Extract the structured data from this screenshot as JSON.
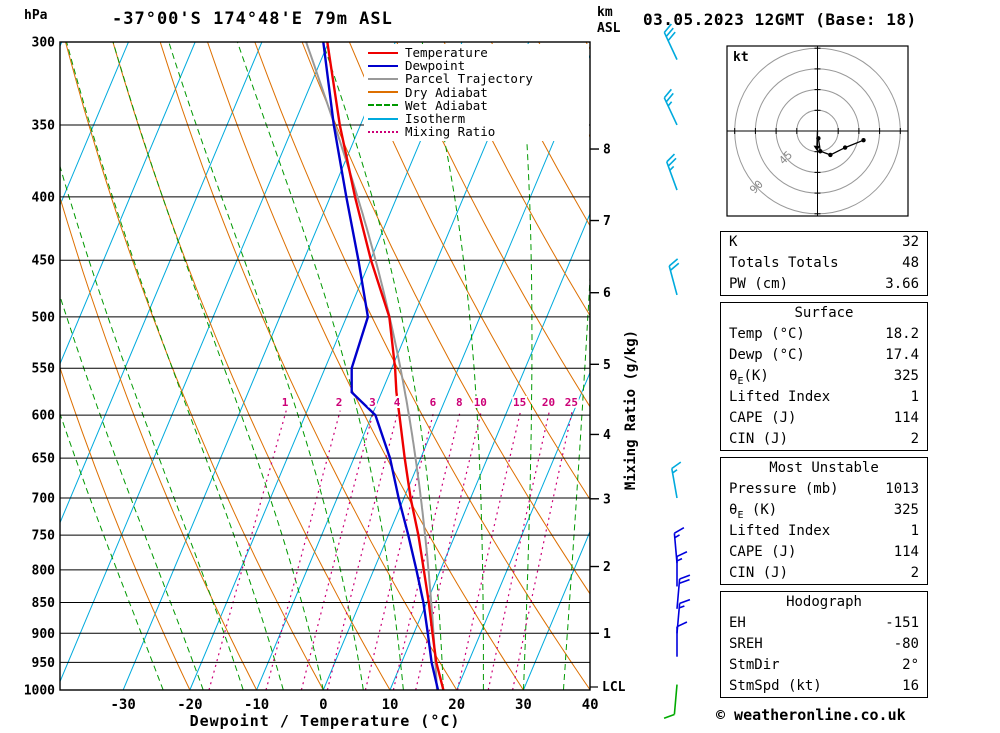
{
  "header": {
    "pressure_unit": "hPa",
    "station_title": "-37°00'S 174°48'E 79m ASL",
    "km_label": "km",
    "asl_label": "ASL",
    "datetime_title": "03.05.2023 12GMT (Base: 18)"
  },
  "legend": {
    "items": [
      {
        "label": "Temperature",
        "color": "#ee0000",
        "style": "solid"
      },
      {
        "label": "Dewpoint",
        "color": "#0000cc",
        "style": "solid"
      },
      {
        "label": "Parcel Trajectory",
        "color": "#999999",
        "style": "solid"
      },
      {
        "label": "Dry Adiabat",
        "color": "#dd6f00",
        "style": "solid"
      },
      {
        "label": "Wet Adiabat",
        "color": "#009900",
        "style": "dashed"
      },
      {
        "label": "Isotherm",
        "color": "#00aadd",
        "style": "solid"
      },
      {
        "label": "Mixing Ratio",
        "color": "#cc0077",
        "style": "dotted"
      }
    ]
  },
  "axes": {
    "pressure_ticks": [
      300,
      350,
      400,
      450,
      500,
      550,
      600,
      650,
      700,
      750,
      800,
      850,
      900,
      950,
      1000
    ],
    "temp_ticks": [
      -30,
      -20,
      -10,
      0,
      10,
      20,
      30,
      40
    ],
    "xlabel": "Dewpoint / Temperature (°C)",
    "right_axis_label": "Mixing Ratio (g/kg)",
    "km_ticks": [
      {
        "km": 1,
        "p": 900
      },
      {
        "km": 2,
        "p": 795
      },
      {
        "km": 3,
        "p": 701
      },
      {
        "km": 4,
        "p": 622
      },
      {
        "km": 5,
        "p": 546
      },
      {
        "km": 6,
        "p": 478
      },
      {
        "km": 7,
        "p": 418
      },
      {
        "km": 8,
        "p": 366
      }
    ],
    "mixing_ratio_values": [
      1,
      2,
      3,
      4,
      6,
      8,
      10,
      15,
      20,
      25
    ],
    "lcl_label": "LCL"
  },
  "chart_data": {
    "type": "line",
    "subtype": "skew-t-log-p-sounding",
    "title": "-37°00'S 174°48'E 79m ASL  03.05.2023 12GMT (Base: 18)",
    "xlabel": "Dewpoint / Temperature (°C)",
    "pressure_range_hpa": [
      300,
      1000
    ],
    "temp_axis_range_c": [
      -30,
      40
    ],
    "pressure_hpa": [
      1013,
      1000,
      950,
      900,
      850,
      800,
      750,
      700,
      650,
      600,
      575,
      550,
      500,
      450,
      400,
      350,
      300
    ],
    "series": [
      {
        "name": "Temperature",
        "color": "#ee0000",
        "values_c": [
          18.2,
          18.0,
          15.2,
          12.8,
          10.3,
          7.5,
          4.5,
          1.0,
          -2.4,
          -5.9,
          -7.8,
          -9.5,
          -13.6,
          -19.9,
          -26.3,
          -33.1,
          -40.2
        ]
      },
      {
        "name": "Dewpoint",
        "color": "#0000cc",
        "values_c": [
          17.4,
          17.2,
          14.5,
          12.1,
          9.5,
          6.4,
          3.0,
          -0.8,
          -4.6,
          -9.5,
          -14.5,
          -16.0,
          -16.8,
          -21.8,
          -27.6,
          -34.0,
          -40.8
        ]
      }
    ],
    "parcel": {
      "start_pressure_hpa": 1013,
      "start_temp_c": 18.2,
      "start_dewp_c": 17.4,
      "lcl_hpa": 1001
    },
    "background": {
      "isotherms_c": [
        -90,
        -80,
        -70,
        -60,
        -50,
        -40,
        -30,
        -20,
        -10,
        0,
        10,
        20,
        30,
        40
      ],
      "dry_adiabats_theta_c": [
        -20,
        -10,
        0,
        10,
        20,
        30,
        40,
        50,
        60,
        70,
        80,
        90,
        100,
        110
      ],
      "wet_adiabats_c": [
        -24,
        -18,
        -12,
        -6,
        0,
        6,
        12,
        18,
        24,
        30,
        36,
        42
      ],
      "mixing_ratio_g_kg": [
        1,
        2,
        3,
        4,
        6,
        8,
        10,
        15,
        20,
        25
      ]
    },
    "winds": [
      {
        "p": 310,
        "dir": 335,
        "spd": 30,
        "color": "#00aadd"
      },
      {
        "p": 350,
        "dir": 335,
        "spd": 25,
        "color": "#00aadd"
      },
      {
        "p": 395,
        "dir": 340,
        "spd": 25,
        "color": "#00aadd"
      },
      {
        "p": 480,
        "dir": 345,
        "spd": 20,
        "color": "#00aadd"
      },
      {
        "p": 700,
        "dir": 350,
        "spd": 15,
        "color": "#00aadd"
      },
      {
        "p": 790,
        "dir": 355,
        "spd": 15,
        "color": "#0000dd"
      },
      {
        "p": 825,
        "dir": 0,
        "spd": 15,
        "color": "#0000dd"
      },
      {
        "p": 860,
        "dir": 5,
        "spd": 20,
        "color": "#0000dd"
      },
      {
        "p": 900,
        "dir": 5,
        "spd": 15,
        "color": "#0000dd"
      },
      {
        "p": 940,
        "dir": 0,
        "spd": 10,
        "color": "#0000dd"
      },
      {
        "p": 990,
        "dir": 185,
        "spd": 8,
        "color": "#00aa00"
      }
    ]
  },
  "hodograph": {
    "unit_label": "kt",
    "rings_kt": [
      22.5,
      45,
      67.5,
      90
    ],
    "ring_labels": [
      {
        "value": "45",
        "r_kt": 45
      },
      {
        "value": "90",
        "r_kt": 90
      }
    ],
    "trace_uv_kt": [
      [
        1,
        -8
      ],
      [
        3,
        -22
      ],
      [
        14,
        -26
      ],
      [
        30,
        -18
      ],
      [
        50,
        -10
      ]
    ],
    "storm_motion": {
      "dir_deg": 2,
      "speed_kt": 16
    }
  },
  "tables": [
    {
      "rows": [
        {
          "label": "K",
          "value": "32"
        },
        {
          "label": "Totals Totals",
          "value": "48"
        },
        {
          "label": "PW (cm)",
          "value": "3.66"
        }
      ]
    },
    {
      "header": "Surface",
      "rows": [
        {
          "label": "Temp (°C)",
          "value": "18.2"
        },
        {
          "label": "Dewp (°C)",
          "value": "17.4"
        },
        {
          "label": "θ",
          "sub": "E",
          "suffix": "(K)",
          "value": "325"
        },
        {
          "label": "Lifted Index",
          "value": "1"
        },
        {
          "label": "CAPE (J)",
          "value": "114"
        },
        {
          "label": "CIN (J)",
          "value": "2"
        }
      ]
    },
    {
      "header": "Most Unstable",
      "rows": [
        {
          "label": "Pressure (mb)",
          "value": "1013"
        },
        {
          "label": "θ",
          "sub": "E",
          "suffix": " (K)",
          "value": "325"
        },
        {
          "label": "Lifted Index",
          "value": "1"
        },
        {
          "label": "CAPE (J)",
          "value": "114"
        },
        {
          "label": "CIN (J)",
          "value": "2"
        }
      ]
    },
    {
      "header": "Hodograph",
      "rows": [
        {
          "label": "EH",
          "value": "-151"
        },
        {
          "label": "SREH",
          "value": "-80"
        },
        {
          "label": "StmDir",
          "value": "2°"
        },
        {
          "label": "StmSpd (kt)",
          "value": "16"
        }
      ]
    }
  ],
  "footer": {
    "copyright": "© weatheronline.co.uk"
  },
  "colors": {
    "temperature": "#ee0000",
    "dewpoint": "#0000cc",
    "parcel": "#999999",
    "dry_adiabat": "#dd6f00",
    "wet_adiabat": "#009900",
    "isotherm": "#00aadd",
    "mixing_ratio": "#cc0077",
    "grid": "#000000"
  }
}
